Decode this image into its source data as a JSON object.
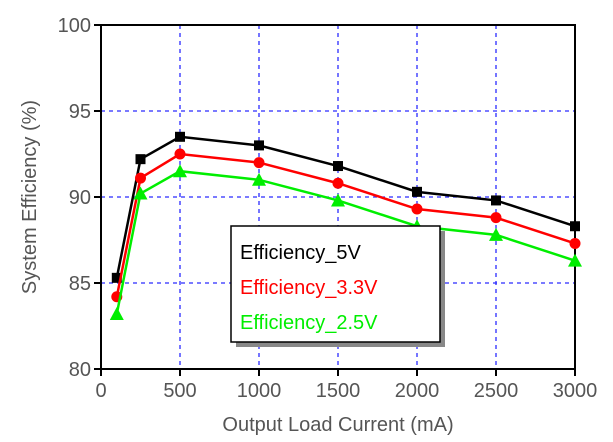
{
  "chart_data": {
    "type": "line",
    "xlabel": "Output Load Current (mA)",
    "ylabel": "System Efficiency (%)",
    "xlim": [
      0,
      3000
    ],
    "ylim": [
      80,
      100
    ],
    "xticks": [
      0,
      500,
      1000,
      1500,
      2000,
      2500,
      3000
    ],
    "yticks": [
      80,
      85,
      90,
      95,
      100
    ],
    "grid": true,
    "legend_position": "center-right",
    "x": [
      100,
      250,
      500,
      1000,
      1500,
      2000,
      2500,
      3000
    ],
    "series": [
      {
        "name": "Efficiency_5V",
        "color": "#000000",
        "marker": "square",
        "values": [
          85.3,
          92.2,
          93.5,
          93.0,
          91.8,
          90.3,
          89.8,
          88.3
        ]
      },
      {
        "name": "Efficiency_3.3V",
        "color": "#ff0000",
        "marker": "circle",
        "values": [
          84.2,
          91.1,
          92.5,
          92.0,
          90.8,
          89.3,
          88.8,
          87.3
        ]
      },
      {
        "name": "Efficiency_2.5V",
        "color": "#00ee00",
        "marker": "triangle",
        "values": [
          83.2,
          90.2,
          91.5,
          91.0,
          89.8,
          88.3,
          87.8,
          86.3
        ]
      }
    ]
  }
}
